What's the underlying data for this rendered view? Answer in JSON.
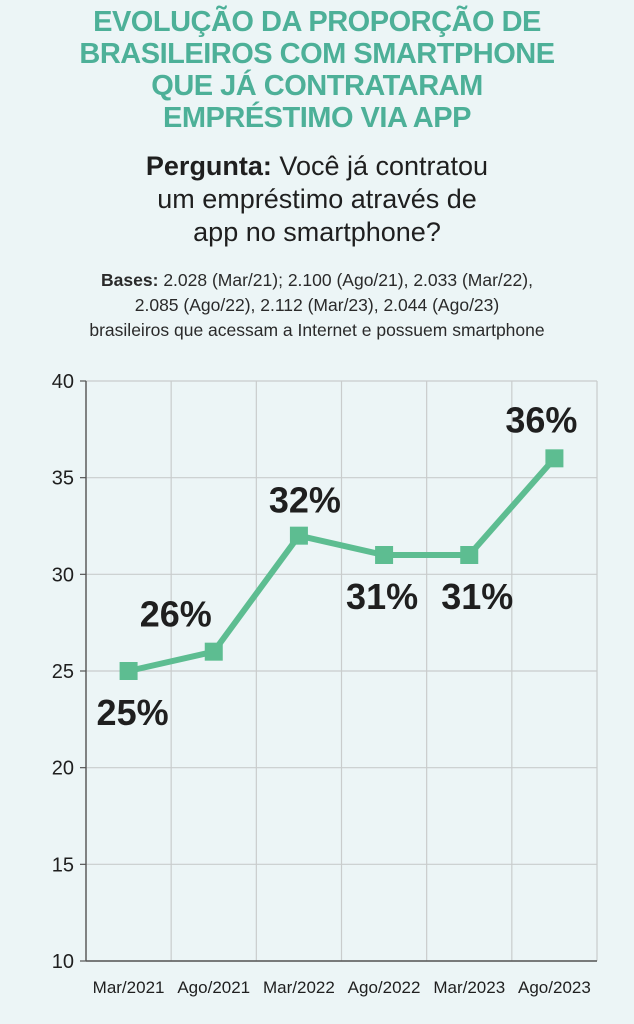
{
  "title": {
    "line1": "EVOLUÇÃO DA PROPORÇÃO DE",
    "line2": "BRASILEIROS COM SMARTPHONE",
    "line3": "QUE JÁ CONTRATARAM",
    "line4": "EMPRÉSTIMO VIA APP"
  },
  "question": {
    "label": "Pergunta:",
    "line1_rest": " Você já contratou",
    "line2": "um empréstimo através de",
    "line3": "app no smartphone?"
  },
  "bases": {
    "label": "Bases:",
    "line1_rest": " 2.028 (Mar/21); 2.100 (Ago/21), 2.033 (Mar/22),",
    "line2": "2.085 (Ago/22), 2.112 (Mar/23), 2.044 (Ago/23)",
    "line3": "brasileiros que acessam a Internet e possuem smartphone"
  },
  "colors": {
    "title": "#4db098",
    "line": "#5dbd91",
    "background": "#ecf5f6",
    "grid": "#c9cccc"
  },
  "chart_data": {
    "type": "line",
    "categories": [
      "Mar/2021",
      "Ago/2021",
      "Mar/2022",
      "Ago/2022",
      "Mar/2023",
      "Ago/2023"
    ],
    "values": [
      25,
      26,
      32,
      31,
      31,
      36
    ],
    "data_labels": [
      "25%",
      "26%",
      "32%",
      "31%",
      "31%",
      "36%"
    ],
    "ylim": [
      10,
      40
    ],
    "yticks": [
      10,
      15,
      20,
      25,
      30,
      35,
      40
    ],
    "grid": true,
    "legend": "none"
  }
}
